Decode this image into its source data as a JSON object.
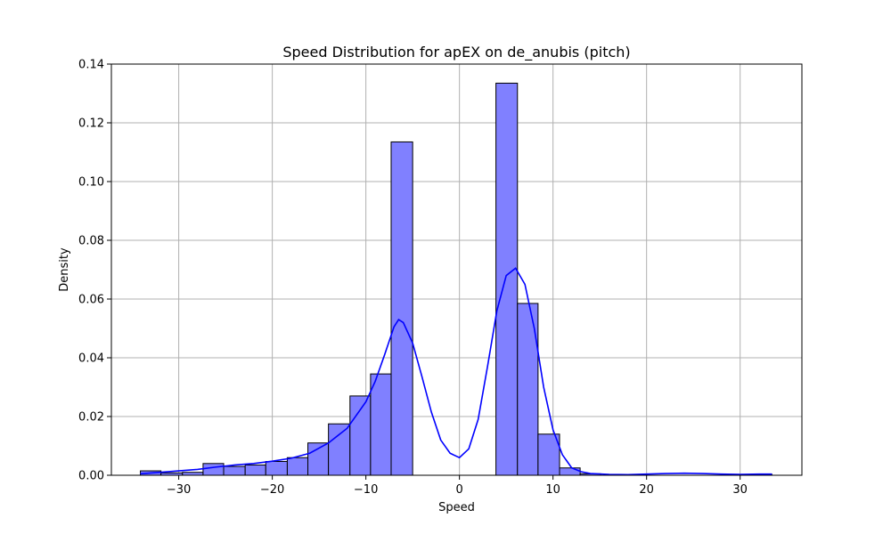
{
  "chart_data": {
    "type": "bar",
    "title": "Speed Distribution for apEX on de_anubis (pitch)",
    "xlabel": "Speed",
    "ylabel": "Density",
    "xlim": [
      -37.2,
      36.6
    ],
    "ylim": [
      0,
      0.14
    ],
    "grid": true,
    "x_ticks": [
      -30,
      -20,
      -10,
      0,
      10,
      20,
      30
    ],
    "x_tick_labels": [
      "−30",
      "−20",
      "−10",
      "0",
      "10",
      "20",
      "30"
    ],
    "y_ticks": [
      0,
      0.02,
      0.04,
      0.06,
      0.08,
      0.1,
      0.12,
      0.14
    ],
    "y_tick_labels": [
      "0.00",
      "0.02",
      "0.04",
      "0.06",
      "0.08",
      "0.10",
      "0.12",
      "0.14"
    ],
    "bar_color": "#8080ff",
    "bar_edge_color": "#000000",
    "line_color": "#0000ff",
    "bins": [
      {
        "x0": -34.1,
        "x1": -31.9,
        "density": 0.0015
      },
      {
        "x0": -31.9,
        "x1": -29.6,
        "density": 0.0008
      },
      {
        "x0": -29.6,
        "x1": -27.4,
        "density": 0.001
      },
      {
        "x0": -27.4,
        "x1": -25.2,
        "density": 0.004
      },
      {
        "x0": -25.2,
        "x1": -22.9,
        "density": 0.003
      },
      {
        "x0": -22.9,
        "x1": -20.7,
        "density": 0.0035
      },
      {
        "x0": -20.7,
        "x1": -18.4,
        "density": 0.0047
      },
      {
        "x0": -18.4,
        "x1": -16.2,
        "density": 0.006
      },
      {
        "x0": -16.2,
        "x1": -14.0,
        "density": 0.011
      },
      {
        "x0": -14.0,
        "x1": -11.7,
        "density": 0.0175
      },
      {
        "x0": -11.7,
        "x1": -9.5,
        "density": 0.027
      },
      {
        "x0": -9.5,
        "x1": -7.3,
        "density": 0.0345
      },
      {
        "x0": -7.3,
        "x1": -5.0,
        "density": 0.1135
      },
      {
        "x0": 3.9,
        "x1": 6.2,
        "density": 0.1335
      },
      {
        "x0": 6.2,
        "x1": 8.4,
        "density": 0.0585
      },
      {
        "x0": 8.4,
        "x1": 10.7,
        "density": 0.014
      },
      {
        "x0": 10.7,
        "x1": 12.9,
        "density": 0.0025
      },
      {
        "x0": 12.9,
        "x1": 15.1,
        "density": 0.0005
      },
      {
        "x0": 31.1,
        "x1": 33.4,
        "density": 0.0003
      }
    ],
    "kde": {
      "x": [
        -34.1,
        -32,
        -30,
        -28,
        -26,
        -24,
        -22,
        -20,
        -18,
        -16,
        -14,
        -12,
        -10,
        -9,
        -8,
        -7,
        -6.5,
        -6,
        -5,
        -4,
        -3,
        -2,
        -1,
        0,
        1,
        2,
        3,
        4,
        5,
        6,
        7,
        8,
        9,
        10,
        11,
        12,
        13,
        14,
        16,
        18,
        20,
        22,
        24,
        26,
        28,
        30,
        32,
        33.4
      ],
      "y": [
        0.0005,
        0.001,
        0.0015,
        0.002,
        0.0028,
        0.0035,
        0.004,
        0.0048,
        0.0058,
        0.0075,
        0.011,
        0.016,
        0.025,
        0.032,
        0.041,
        0.0505,
        0.053,
        0.052,
        0.045,
        0.0335,
        0.0215,
        0.012,
        0.0075,
        0.006,
        0.009,
        0.019,
        0.037,
        0.056,
        0.068,
        0.0705,
        0.065,
        0.05,
        0.03,
        0.0155,
        0.007,
        0.0025,
        0.0012,
        0.0006,
        0.0003,
        0.0002,
        0.0004,
        0.0006,
        0.0007,
        0.0006,
        0.0004,
        0.0003,
        0.0004,
        0.0004
      ]
    }
  }
}
